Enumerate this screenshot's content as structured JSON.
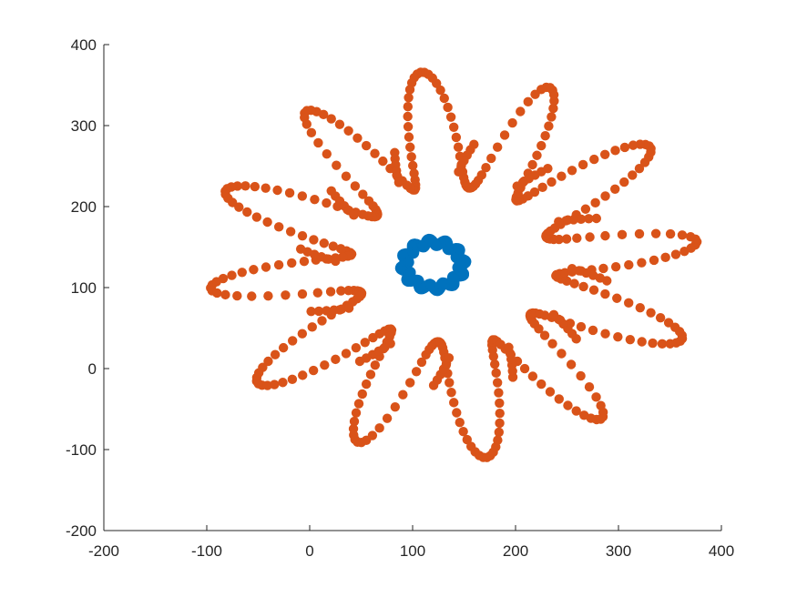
{
  "chart_data": {
    "type": "scatter",
    "title": "",
    "xlabel": "",
    "ylabel": "",
    "xlim": [
      -200,
      400
    ],
    "ylim": [
      -200,
      400
    ],
    "xticks": [
      -200,
      -100,
      0,
      100,
      200,
      300,
      400
    ],
    "yticks": [
      -200,
      -100,
      0,
      100,
      200,
      300,
      400
    ],
    "xtick_labels": [
      "-200",
      "-100",
      "0",
      "100",
      "200",
      "300",
      "400"
    ],
    "ytick_labels": [
      "-200",
      "-100",
      "0",
      "100",
      "200",
      "300",
      "400"
    ],
    "grid": false,
    "box": false,
    "series": [
      {
        "color": "#0072BD",
        "marker": "filled-circle",
        "shape": "inner flower ring",
        "center": [
          120,
          128
        ],
        "base_radius": 28,
        "petal_amplitude": 4,
        "petals": 12,
        "count": 144
      },
      {
        "color": "#D95319",
        "marker": "filled-circle",
        "shape": "outer 12-petal star",
        "center": [
          140,
          128
        ],
        "base_radius": 170,
        "petal_amplitude": 70,
        "petals": 12,
        "count": 420
      }
    ]
  }
}
